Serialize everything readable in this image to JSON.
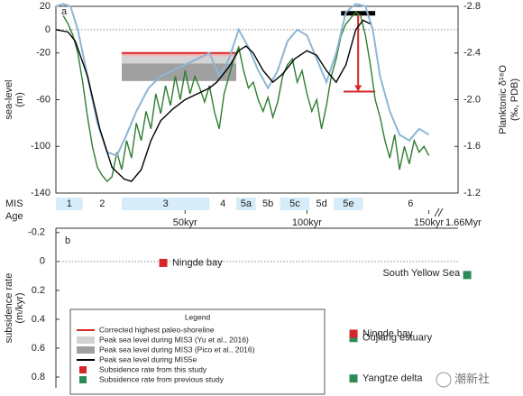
{
  "chart_data": [
    {
      "type": "line",
      "panel_label": "a",
      "ylabel": [
        "sea-level",
        "(m)"
      ],
      "y2label": [
        "Planktonic δ¹⁸O",
        "(‰, PDB)"
      ],
      "xlim": [
        -3,
        162
      ],
      "ylim": [
        -140,
        20
      ],
      "y2lim": [
        -1.2,
        -2.8
      ],
      "yticks": [
        20,
        0,
        -20,
        -60,
        -100,
        -140
      ],
      "y2ticks": [
        -2.8,
        -2.4,
        {
          "value": -2,
          "label": "-2.0"
        },
        -1.6,
        -1.2
      ],
      "xticks": [
        {
          "value": 50,
          "label": "50kyr"
        },
        {
          "value": 100,
          "label": "100kyr"
        },
        {
          "value": 150,
          "label": "150kyr"
        }
      ],
      "x_break_label": "1.66Myr",
      "reference_line": 0,
      "series": [
        {
          "color": "#2e7d32",
          "x": [
            0,
            2,
            4,
            6,
            8,
            10,
            12,
            14,
            16,
            18,
            20,
            22,
            24,
            26,
            28,
            30,
            32,
            34,
            36,
            38,
            40,
            42,
            44,
            46,
            48,
            50,
            52,
            54,
            56,
            58,
            60,
            62,
            64,
            66,
            68,
            70,
            72,
            74,
            76,
            78,
            80,
            82,
            84,
            86,
            88,
            90,
            92,
            94,
            96,
            98,
            100,
            102,
            104,
            106,
            108,
            110,
            112,
            114,
            116,
            118,
            120,
            122,
            124,
            126,
            128,
            130,
            132,
            134,
            136,
            138,
            140,
            142,
            144,
            146,
            148,
            150
          ],
          "values": [
            12,
            5,
            -5,
            -20,
            -45,
            -75,
            -100,
            -118,
            -125,
            -130,
            -126,
            -105,
            -120,
            -95,
            -110,
            -80,
            -95,
            -70,
            -85,
            -55,
            -72,
            -48,
            -65,
            -40,
            -60,
            -35,
            -55,
            -40,
            -50,
            -62,
            -48,
            -70,
            -85,
            -55,
            -40,
            -25,
            -15,
            -35,
            -50,
            -45,
            -60,
            -70,
            -58,
            -75,
            -62,
            -40,
            -30,
            -25,
            -45,
            -35,
            -55,
            -70,
            -60,
            -85,
            -65,
            -40,
            -25,
            -5,
            5,
            10,
            15,
            12,
            -5,
            -30,
            -60,
            -75,
            -95,
            -110,
            -90,
            -120,
            -100,
            -115,
            -95,
            -105,
            -100,
            -108
          ]
        },
        {
          "color": "#8db6d6",
          "axis": "y2",
          "x": [
            -3,
            0,
            3,
            6,
            10,
            14,
            18,
            22,
            26,
            30,
            35,
            40,
            45,
            50,
            55,
            60,
            64,
            68,
            72,
            76,
            80,
            84,
            88,
            92,
            96,
            100,
            104,
            108,
            112,
            116,
            120,
            124,
            127,
            130,
            134,
            138,
            142,
            146,
            150
          ],
          "values": [
            -2.8,
            -2.82,
            -2.8,
            -2.6,
            -2.2,
            -1.8,
            -1.55,
            -1.52,
            -1.7,
            -1.9,
            -2.1,
            -2.2,
            -2.25,
            -2.3,
            -2.35,
            -2.4,
            -2.2,
            -2.35,
            -2.6,
            -2.45,
            -2.25,
            -2.1,
            -2.25,
            -2.5,
            -2.6,
            -2.55,
            -2.35,
            -2.15,
            -2.4,
            -2.75,
            -2.82,
            -2.8,
            -2.6,
            -2.2,
            -1.9,
            -1.7,
            -1.65,
            -1.75,
            -1.7
          ]
        },
        {
          "color": "#000000",
          "x": [
            -3,
            2,
            5,
            10,
            15,
            20,
            25,
            28,
            32,
            36,
            40,
            45,
            50,
            55,
            60,
            63,
            68,
            72,
            75,
            78,
            82,
            86,
            90,
            95,
            100,
            104,
            108,
            112,
            116,
            120,
            123,
            126
          ],
          "values": [
            0,
            -2,
            -10,
            -40,
            -85,
            -118,
            -128,
            -130,
            -120,
            -95,
            -78,
            -68,
            -60,
            -55,
            -50,
            -45,
            -32,
            -18,
            -14,
            -20,
            -35,
            -45,
            -38,
            -25,
            -18,
            -22,
            -35,
            -45,
            -30,
            0,
            8,
            5
          ]
        }
      ],
      "annotations": [
        {
          "kind": "band",
          "color": "#f4b6b6",
          "x": [
            24,
            71
          ],
          "y": [
            -20,
            -23
          ]
        },
        {
          "kind": "band",
          "color": "#d3d3d3",
          "x": [
            24,
            71
          ],
          "y": [
            -23,
            -29
          ]
        },
        {
          "kind": "band",
          "color": "#a0a0a0",
          "x": [
            24,
            71
          ],
          "y": [
            -29,
            -44
          ]
        },
        {
          "kind": "line",
          "color": "#d62728",
          "x": [
            24,
            71
          ],
          "y": [
            -20,
            -20
          ]
        },
        {
          "kind": "thick-line",
          "color": "#000000",
          "x": [
            114,
            128
          ],
          "y": [
            14,
            14
          ]
        },
        {
          "kind": "arrow",
          "color": "#d62728",
          "x": [
            121,
            121
          ],
          "y": [
            14,
            -53
          ]
        },
        {
          "kind": "line",
          "color": "#d62728",
          "x": [
            115,
            128
          ],
          "y": [
            -53,
            -53
          ]
        }
      ],
      "stage_label": "MIS",
      "age_label": "Age",
      "stage_color": "#d6ecf8",
      "stages": [
        {
          "name": "1",
          "start": -3,
          "end": 8,
          "highlight": true
        },
        {
          "name": "2",
          "start": 8,
          "end": 24,
          "highlight": false
        },
        {
          "name": "3",
          "start": 24,
          "end": 60,
          "highlight": true
        },
        {
          "name": "4",
          "start": 60,
          "end": 71,
          "highlight": false
        },
        {
          "name": "5a",
          "start": 71,
          "end": 79,
          "highlight": true
        },
        {
          "name": "5b",
          "start": 79,
          "end": 89,
          "highlight": false
        },
        {
          "name": "5c",
          "start": 89,
          "end": 101,
          "highlight": true
        },
        {
          "name": "5d",
          "start": 101,
          "end": 111,
          "highlight": false
        },
        {
          "name": "5e",
          "start": 111,
          "end": 123,
          "highlight": true
        },
        {
          "name": "6",
          "start": 123,
          "end": 162,
          "highlight": false
        }
      ]
    },
    {
      "type": "scatter",
      "panel_label": "b",
      "ylabel": [
        "subsidence rate",
        "(m/kyr)"
      ],
      "xlim": [
        -3,
        170
      ],
      "ylim": [
        0.875,
        -0.23
      ],
      "yticks": [
        -0.2,
        0,
        0.2,
        0.4,
        0.6,
        0.8
      ],
      "reference_line": 0,
      "points": [
        {
          "label": "Ningde bay",
          "color": "#d62728",
          "x": 41,
          "value": 0.01,
          "label_side": "right"
        },
        {
          "label": "South Yellow Sea",
          "color": "#2e8b57",
          "x": 165.6,
          "value": 0.094,
          "label_side": "left"
        },
        {
          "label": "Oujiang estuary",
          "color": "#2e8b57",
          "x": 119,
          "value": 0.53,
          "label_side": "right"
        },
        {
          "label": "Ningde bay",
          "color": "#d62728",
          "x": 119,
          "value": 0.5,
          "label_side": "right"
        },
        {
          "label": "Yangtze delta",
          "color": "#2e8b57",
          "x": 119,
          "value": 0.81,
          "label_side": "right"
        }
      ],
      "legend": {
        "title": "Legend",
        "items": [
          {
            "label": "Corrected highest paleo-shoreline",
            "color": "#d62728",
            "kind": "line"
          },
          {
            "label": "Peak sea level during MIS3 (Yu et al., 2016)",
            "color": "#d3d3d3",
            "kind": "band"
          },
          {
            "label": "Peak sea level during MIS3 (Pico et al., 2016)",
            "color": "#a0a0a0",
            "kind": "band"
          },
          {
            "label": "Peak sea level during MIS5e",
            "color": "#000000",
            "kind": "line"
          },
          {
            "label": "Subsidence rate from this study",
            "color": "#d62728",
            "kind": "marker"
          },
          {
            "label": "Subsidence rate from previous study",
            "color": "#2e8b57",
            "kind": "marker"
          }
        ]
      }
    }
  ],
  "watermark": "潮新社"
}
